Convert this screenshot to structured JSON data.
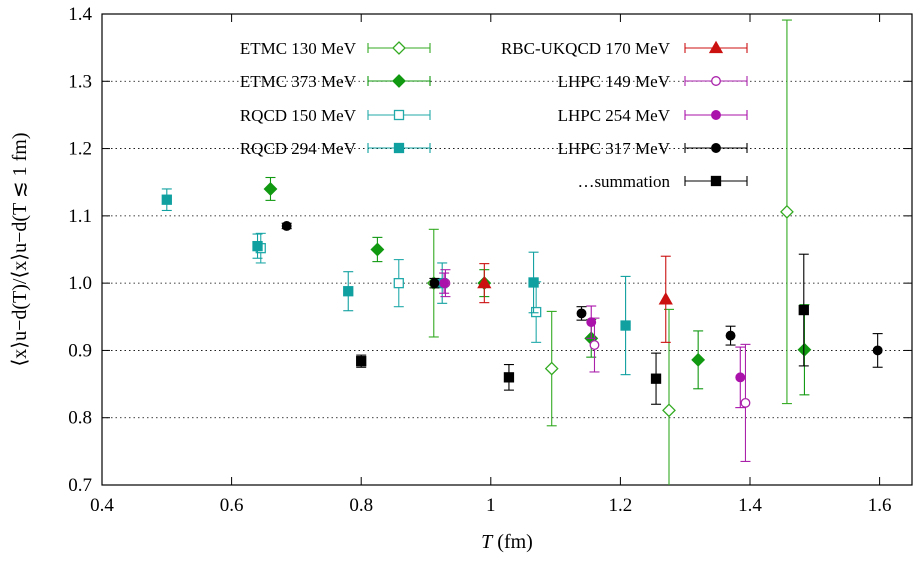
{
  "chart_data": {
    "type": "scatter",
    "xlabel_italic": "T",
    "xlabel_rest": " (fm)",
    "ylabel": "⟨x⟩u−d(T)/⟨x⟩u−d(T ≲ 1 fm)",
    "xlim": [
      0.4,
      1.65
    ],
    "ylim": [
      0.7,
      1.4
    ],
    "xticks": [
      "0.4",
      "0.6",
      "0.8",
      "1",
      "1.2",
      "1.4",
      "1.6"
    ],
    "yticks": [
      "0.7",
      "0.8",
      "0.9",
      "1",
      "1.1",
      "1.2",
      "1.3",
      "1.4"
    ],
    "grid": "horizontal dotted",
    "legend_placement": "top",
    "series": [
      {
        "name": "ETMC 130 MeV",
        "color": "#33aa22",
        "marker": "diamond-open",
        "points": [
          [
            0.912,
            1.0,
            0.08
          ],
          [
            1.094,
            0.873,
            0.085
          ],
          [
            1.275,
            0.811,
            0.15
          ],
          [
            1.457,
            1.106,
            0.285
          ]
        ]
      },
      {
        "name": "ETMC 373 MeV",
        "color": "#119911",
        "marker": "diamond-filled",
        "points": [
          [
            0.66,
            1.14,
            0.017
          ],
          [
            0.825,
            1.05,
            0.018
          ],
          [
            0.99,
            1.0,
            0.02
          ],
          [
            1.155,
            0.918,
            0.028
          ],
          [
            1.32,
            0.886,
            0.043
          ],
          [
            1.484,
            0.901,
            0.067
          ]
        ]
      },
      {
        "name": "RQCD 150 MeV",
        "color": "#22aaaa",
        "marker": "square-open",
        "points": [
          [
            0.645,
            1.052,
            0.022
          ],
          [
            0.858,
            1.0,
            0.035
          ],
          [
            1.07,
            0.957,
            0.045
          ]
        ]
      },
      {
        "name": "RQCD 294 MeV",
        "color": "#11a0a0",
        "marker": "square-filled",
        "points": [
          [
            0.5,
            1.124,
            0.016
          ],
          [
            0.64,
            1.055,
            0.018
          ],
          [
            0.78,
            0.988,
            0.029
          ],
          [
            0.925,
            1.0,
            0.03
          ],
          [
            1.066,
            1.001,
            0.045
          ],
          [
            1.208,
            0.937,
            0.073
          ]
        ]
      },
      {
        "name": "RBC-UKQCD 170 MeV",
        "color": "#cc1111",
        "marker": "triangle-filled",
        "points": [
          [
            0.99,
            1.0,
            0.029
          ],
          [
            1.27,
            0.976,
            0.064
          ]
        ]
      },
      {
        "name": "LHPC 149 MeV",
        "color": "#aa22aa",
        "marker": "circle-open",
        "points": [
          [
            0.93,
            1.0,
            0.02
          ],
          [
            1.16,
            0.908,
            0.04
          ],
          [
            1.393,
            0.822,
            0.087
          ]
        ]
      },
      {
        "name": "LHPC 254 MeV",
        "color": "#aa11aa",
        "marker": "circle-filled",
        "points": [
          [
            0.928,
            1.0,
            0.015
          ],
          [
            1.155,
            0.942,
            0.024
          ],
          [
            1.385,
            0.86,
            0.045
          ]
        ]
      },
      {
        "name": "LHPC 317 MeV",
        "color": "#000000",
        "marker": "circle-filled",
        "points": [
          [
            0.685,
            1.085,
            0.004
          ],
          [
            0.913,
            1.0,
            0.007
          ],
          [
            1.14,
            0.955,
            0.01
          ],
          [
            1.37,
            0.922,
            0.014
          ],
          [
            1.597,
            0.9,
            0.025
          ]
        ]
      },
      {
        "name": "…summation",
        "color": "#000000",
        "marker": "square-filled",
        "points": [
          [
            0.8,
            0.884,
            0.009
          ],
          [
            1.028,
            0.86,
            0.019
          ],
          [
            1.255,
            0.858,
            0.038
          ],
          [
            1.483,
            0.96,
            0.083
          ]
        ]
      }
    ]
  }
}
